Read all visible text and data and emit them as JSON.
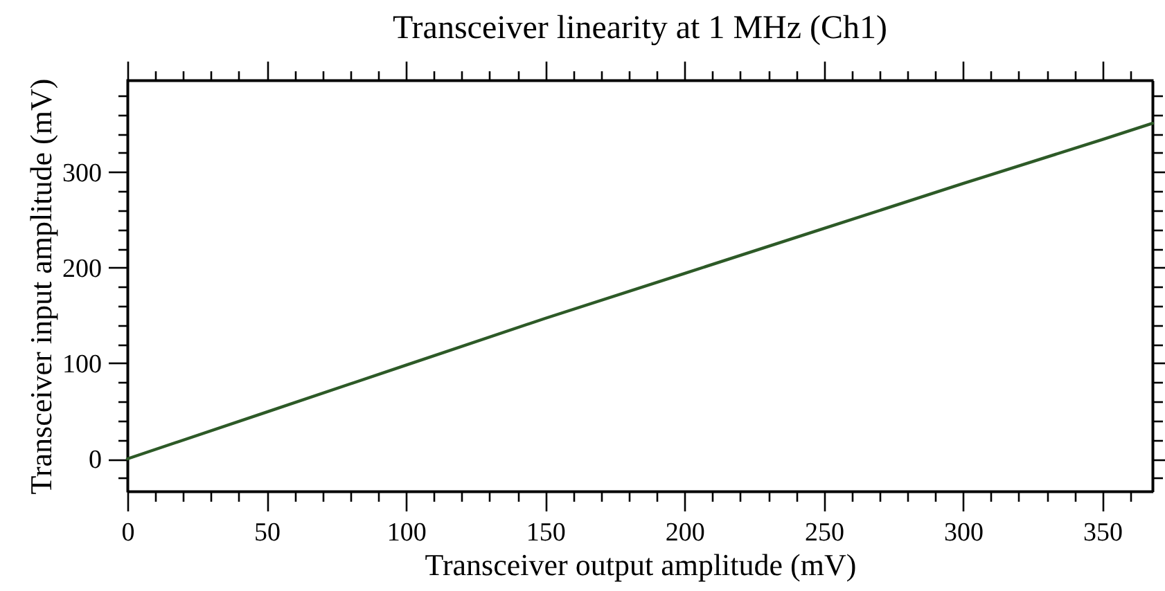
{
  "chart_data": {
    "type": "line",
    "title": "Transceiver linearity at 1 MHz (Ch1)",
    "xlabel": "Transceiver output amplitude (mV)",
    "ylabel": "Transceiver input amplitude (mV)",
    "x": [
      0,
      50,
      100,
      150,
      200,
      250,
      300,
      350,
      368
    ],
    "series": [
      {
        "color": "#2d5a27",
        "values": [
          0,
          49,
          98,
          147,
          194,
          241,
          288,
          334,
          351
        ]
      }
    ],
    "xlim": [
      0,
      368
    ],
    "ylim": [
      -34,
      396
    ],
    "xticks": [
      0,
      {
        "value": 10,
        "label": null
      },
      {
        "value": 20,
        "label": null
      },
      {
        "value": 30,
        "label": null
      },
      {
        "value": 40,
        "label": null
      },
      50,
      {
        "value": 60,
        "label": null
      },
      {
        "value": 70,
        "label": null
      },
      {
        "value": 80,
        "label": null
      },
      {
        "value": 90,
        "label": null
      },
      100,
      {
        "value": 110,
        "label": null
      },
      {
        "value": 120,
        "label": null
      },
      {
        "value": 130,
        "label": null
      },
      {
        "value": 140,
        "label": null
      },
      150,
      {
        "value": 160,
        "label": null
      },
      {
        "value": 170,
        "label": null
      },
      {
        "value": 180,
        "label": null
      },
      {
        "value": 190,
        "label": null
      },
      200,
      {
        "value": 210,
        "label": null
      },
      {
        "value": 220,
        "label": null
      },
      {
        "value": 230,
        "label": null
      },
      {
        "value": 240,
        "label": null
      },
      250,
      {
        "value": 260,
        "label": null
      },
      {
        "value": 270,
        "label": null
      },
      {
        "value": 280,
        "label": null
      },
      {
        "value": 290,
        "label": null
      },
      300,
      {
        "value": 310,
        "label": null
      },
      {
        "value": 320,
        "label": null
      },
      {
        "value": 330,
        "label": null
      },
      {
        "value": 340,
        "label": null
      },
      350,
      {
        "value": 360,
        "label": null
      }
    ],
    "yticks": [
      {
        "value": -20,
        "label": null
      },
      0,
      {
        "value": 20,
        "label": null
      },
      {
        "value": 40,
        "label": null
      },
      {
        "value": 60,
        "label": null
      },
      {
        "value": 80,
        "label": null
      },
      100,
      {
        "value": 120,
        "label": null
      },
      {
        "value": 140,
        "label": null
      },
      {
        "value": 160,
        "label": null
      },
      {
        "value": 180,
        "label": null
      },
      200,
      {
        "value": 220,
        "label": null
      },
      {
        "value": 240,
        "label": null
      },
      {
        "value": 260,
        "label": null
      },
      {
        "value": 280,
        "label": null
      },
      300,
      {
        "value": 320,
        "label": null
      },
      {
        "value": 340,
        "label": null
      },
      {
        "value": 360,
        "label": null
      },
      {
        "value": 380,
        "label": null
      }
    ],
    "grid": false,
    "line_style": "solid"
  }
}
